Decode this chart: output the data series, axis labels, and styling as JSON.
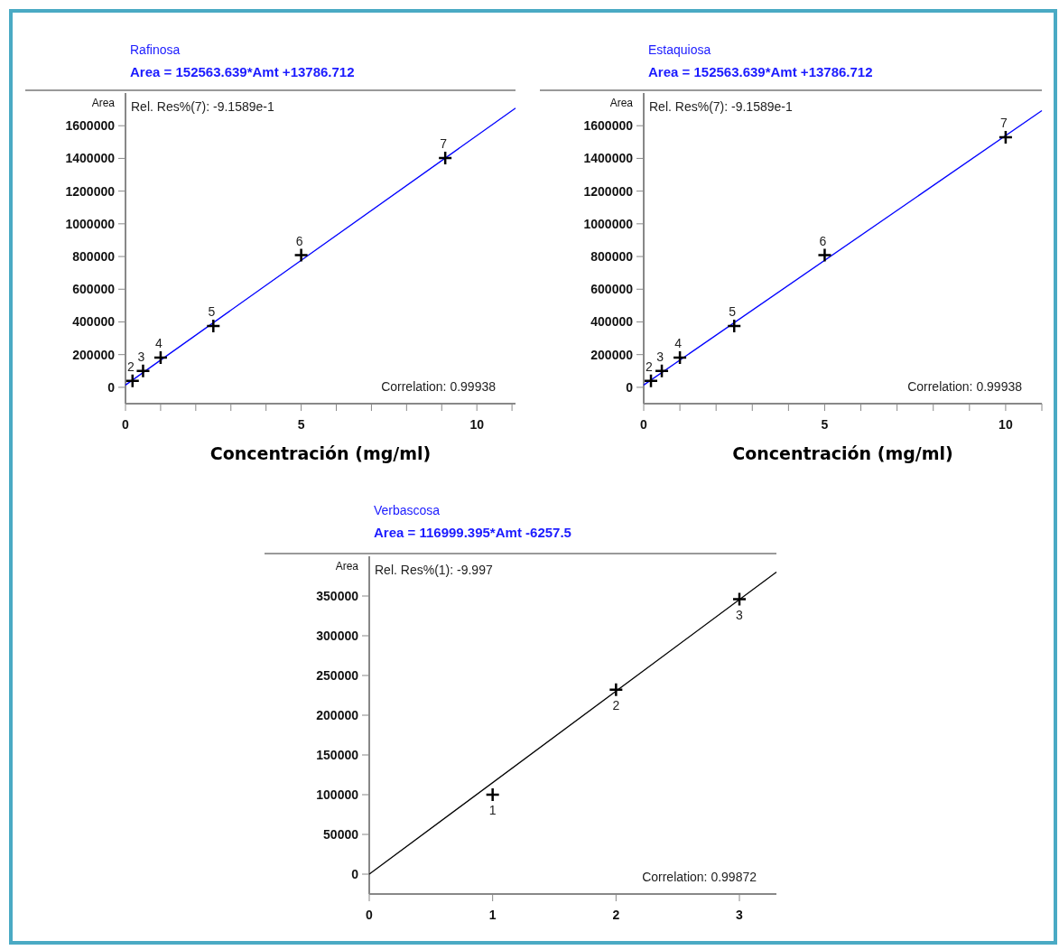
{
  "chart_data": [
    {
      "type": "scatter",
      "title": "Rafinosa",
      "subtitle": "Area = 152563.639*Amt +13786.712",
      "ylabel": "Area",
      "xlabel": "Concentración  (mg/ml)",
      "grid": false,
      "xlim": [
        0,
        11.1
      ],
      "ylim": [
        -100000,
        1800000
      ],
      "xticks": [
        0,
        {
          "value": 1,
          "label": null
        },
        {
          "value": 2,
          "label": null
        },
        {
          "value": 3,
          "label": null
        },
        {
          "value": 4,
          "label": null
        },
        5,
        {
          "value": 6,
          "label": null
        },
        {
          "value": 7,
          "label": null
        },
        {
          "value": 8,
          "label": null
        },
        {
          "value": 9,
          "label": null
        },
        10,
        {
          "value": 11,
          "label": null
        }
      ],
      "yticks": [
        0,
        200000,
        400000,
        600000,
        800000,
        1000000,
        1200000,
        1400000,
        1600000
      ],
      "annotations": [
        "Rel. Res%(7): -9.1589e-1",
        "Correlation: 0.99938",
        {
          "text": "2",
          "x": 0.2,
          "y": 40000
        },
        {
          "text": "3",
          "x": 0.5,
          "y": 100000
        },
        {
          "text": "4",
          "x": 1,
          "y": 182000
        },
        {
          "text": "5",
          "x": 2.5,
          "y": 375000
        },
        {
          "text": "6",
          "x": 5,
          "y": 808000
        },
        {
          "text": "7",
          "x": 9.1,
          "y": 1403000
        }
      ],
      "series": [
        {
          "marker": "cross",
          "color": "#000000",
          "x": [
            0.2,
            0.5,
            1,
            2.5,
            5,
            9.1
          ],
          "values": [
            40000,
            100000,
            182000,
            375000,
            808000,
            1403000
          ]
        },
        {
          "type": "line",
          "marker": "none",
          "color": "#0000ff",
          "line_style": "solid",
          "x": [
            0,
            11.1
          ],
          "values": [
            14000,
            1707000
          ]
        }
      ]
    },
    {
      "type": "scatter",
      "title": "Estaquiosa",
      "subtitle": "Area = 152563.639*Amt +13786.712",
      "ylabel": "Area",
      "xlabel": "Concentración  (mg/ml)",
      "grid": false,
      "xlim": [
        0,
        11
      ],
      "ylim": [
        -100000,
        1800000
      ],
      "xticks": [
        0,
        {
          "value": 1,
          "label": null
        },
        {
          "value": 2,
          "label": null
        },
        {
          "value": 3,
          "label": null
        },
        {
          "value": 4,
          "label": null
        },
        5,
        {
          "value": 6,
          "label": null
        },
        {
          "value": 7,
          "label": null
        },
        {
          "value": 8,
          "label": null
        },
        {
          "value": 9,
          "label": null
        },
        10,
        {
          "value": 11,
          "label": null
        }
      ],
      "yticks": [
        0,
        200000,
        400000,
        600000,
        800000,
        1000000,
        1200000,
        1400000,
        1600000
      ],
      "annotations": [
        "Rel. Res%(7): -9.1589e-1",
        "Correlation: 0.99938",
        {
          "text": "2",
          "x": 0.2,
          "y": 40000
        },
        {
          "text": "3",
          "x": 0.5,
          "y": 100000
        },
        {
          "text": "4",
          "x": 1,
          "y": 182000
        },
        {
          "text": "5",
          "x": 2.5,
          "y": 375000
        },
        {
          "text": "6",
          "x": 5,
          "y": 808000
        },
        {
          "text": "7",
          "x": 10,
          "y": 1530000
        }
      ],
      "series": [
        {
          "marker": "cross",
          "color": "#000000",
          "x": [
            0.2,
            0.5,
            1,
            2.5,
            5,
            10
          ],
          "values": [
            40000,
            100000,
            182000,
            375000,
            808000,
            1530000
          ]
        },
        {
          "type": "line",
          "marker": "none",
          "color": "#0000ff",
          "line_style": "solid",
          "x": [
            0,
            11
          ],
          "values": [
            14000,
            1692000
          ]
        }
      ]
    },
    {
      "type": "scatter",
      "title": "Verbascosa",
      "subtitle": "Area = 116999.395*Amt -6257.5",
      "ylabel": "Area",
      "grid": false,
      "xlim": [
        0,
        3.3
      ],
      "ylim": [
        -25000,
        400000
      ],
      "xticks": [
        0,
        1,
        2,
        3
      ],
      "yticks": [
        0,
        50000,
        100000,
        150000,
        200000,
        250000,
        300000,
        350000
      ],
      "annotations": [
        "Rel. Res%(1): -9.997",
        "Correlation: 0.99872",
        {
          "text": "1",
          "x": 1,
          "y": 100000
        },
        {
          "text": "2",
          "x": 2,
          "y": 232000
        },
        {
          "text": "3",
          "x": 3,
          "y": 346000
        }
      ],
      "series": [
        {
          "marker": "cross",
          "color": "#000000",
          "x": [
            1,
            2,
            3
          ],
          "values": [
            100000,
            232000,
            346000
          ]
        },
        {
          "type": "line",
          "marker": "none",
          "color": "#000000",
          "line_style": "solid",
          "x": [
            0,
            3.3
          ],
          "values": [
            0,
            380000
          ]
        }
      ]
    }
  ]
}
